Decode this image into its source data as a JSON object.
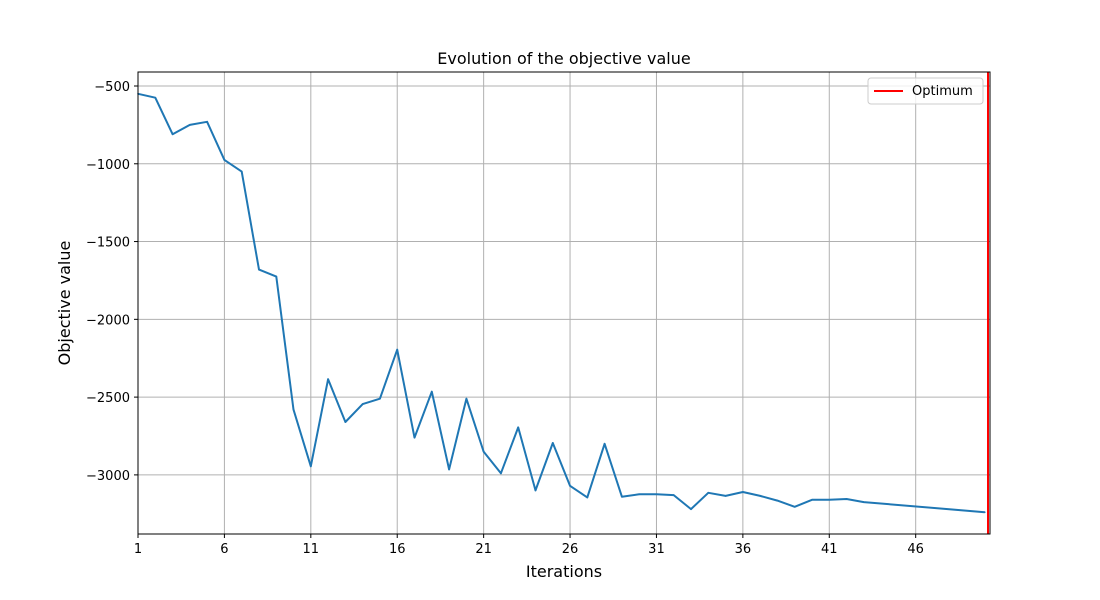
{
  "chart_data": {
    "type": "line",
    "title": "Evolution of the objective value",
    "xlabel": "Iterations",
    "ylabel": "Objective value",
    "xlim": [
      1,
      50.3
    ],
    "ylim": [
      -3380,
      -410
    ],
    "xticks": [
      1,
      6,
      11,
      16,
      21,
      26,
      31,
      36,
      41,
      46
    ],
    "yticks": [
      -500,
      -1000,
      -1500,
      -2000,
      -2500,
      -3000
    ],
    "ytick_labels": [
      "−500",
      "−1000",
      "−1500",
      "−2000",
      "−2500",
      "−3000"
    ],
    "grid": true,
    "legend_position": "top-right",
    "series": [
      {
        "color": "#1f77b4",
        "x": [
          1,
          2,
          3,
          4,
          5,
          6,
          7,
          8,
          9,
          10,
          11,
          12,
          13,
          14,
          15,
          16,
          17,
          18,
          19,
          20,
          21,
          22,
          23,
          24,
          25,
          26,
          27,
          28,
          29,
          30,
          31,
          32,
          33,
          34,
          35,
          36,
          37,
          38,
          39,
          40,
          41,
          42,
          43,
          50
        ],
        "y": [
          -550,
          -575,
          -810,
          -750,
          -730,
          -975,
          -1050,
          -1680,
          -1725,
          -2580,
          -2945,
          -2385,
          -2660,
          -2545,
          -2510,
          -2195,
          -2760,
          -2465,
          -2965,
          -2510,
          -2850,
          -2990,
          -2695,
          -3100,
          -2795,
          -3070,
          -3145,
          -2800,
          -3140,
          -3125,
          -3125,
          -3130,
          -3220,
          -3115,
          -3135,
          -3110,
          -3135,
          -3165,
          -3205,
          -3160,
          -3160,
          -3155,
          -3175,
          -3240
        ]
      },
      {
        "name": "Optimum",
        "type": "vline",
        "color": "#ff0000",
        "x": 50.3
      }
    ]
  }
}
